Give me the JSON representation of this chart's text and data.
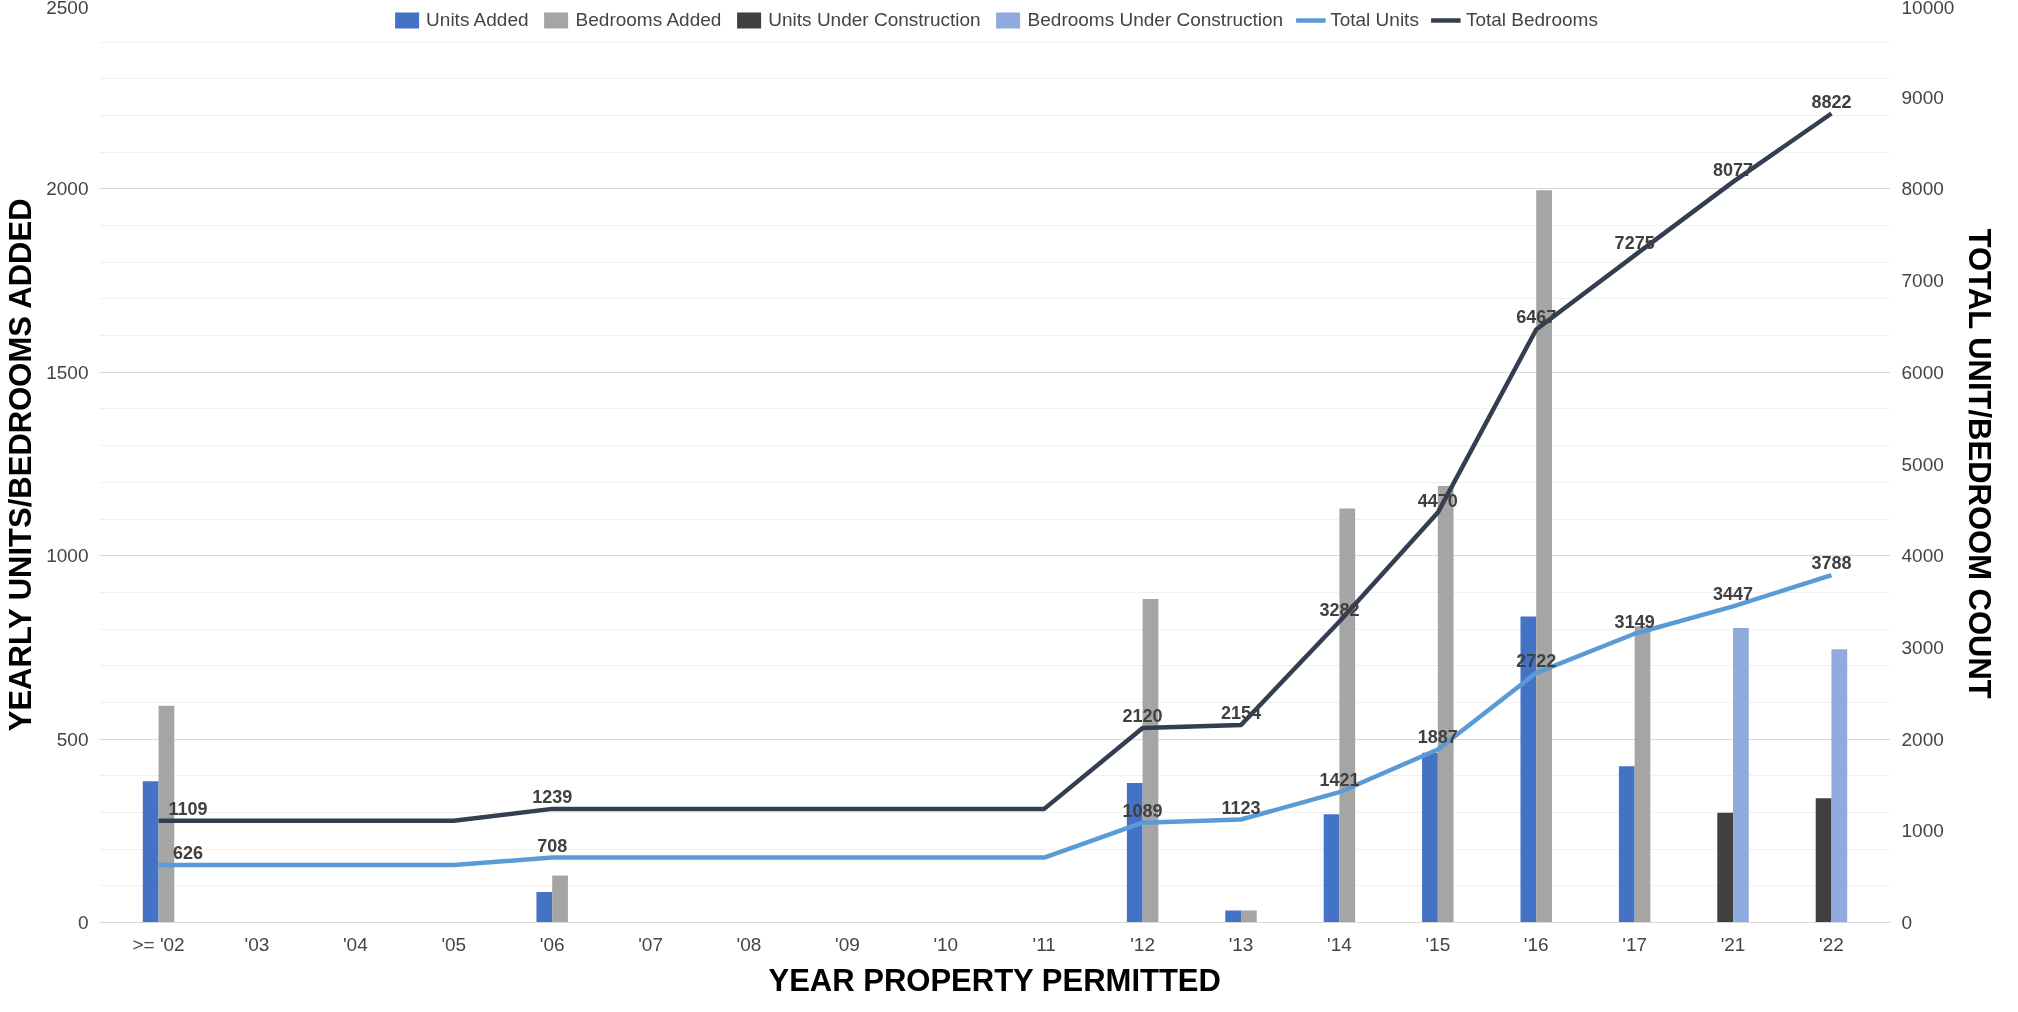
{
  "chart_data": {
    "type": "bar",
    "categories": [
      ">= '02",
      "'03",
      "'04",
      "'05",
      "'06",
      "'07",
      "'08",
      "'09",
      "'10",
      "'11",
      "'12",
      "'13",
      "'14",
      "'15",
      "'16",
      "'17",
      "'21",
      "'22"
    ],
    "series": [
      {
        "name": "Units Added",
        "color": "#4472c4",
        "values": [
          385,
          null,
          null,
          null,
          83,
          null,
          null,
          null,
          null,
          null,
          380,
          33,
          295,
          463,
          834,
          426,
          null,
          null
        ]
      },
      {
        "name": "Bedrooms Added",
        "color": "#a5a5a5",
        "values": [
          591,
          null,
          null,
          null,
          128,
          null,
          null,
          null,
          null,
          null,
          882,
          33,
          1129,
          1190,
          1996,
          808,
          null,
          null
        ]
      },
      {
        "name": "Units Under Construction",
        "color": "#404040",
        "values": [
          null,
          null,
          null,
          null,
          null,
          null,
          null,
          null,
          null,
          null,
          null,
          null,
          null,
          null,
          null,
          null,
          299,
          339
        ]
      },
      {
        "name": "Bedrooms Under Construction",
        "color": "#8faadc",
        "values": [
          null,
          null,
          null,
          null,
          null,
          null,
          null,
          null,
          null,
          null,
          null,
          null,
          null,
          null,
          null,
          null,
          803,
          745
        ]
      },
      {
        "name": "Total Units",
        "type": "line",
        "axis": "y2",
        "color": "#5b9bd5",
        "values": [
          626,
          626,
          626,
          626,
          708,
          708,
          708,
          708,
          708,
          708,
          1089,
          1123,
          1421,
          1887,
          2722,
          3149,
          3447,
          3788
        ],
        "value_labels": [
          "626",
          null,
          null,
          null,
          "708",
          null,
          null,
          null,
          null,
          null,
          "1089",
          "1123",
          "1421",
          "1887",
          "2722",
          "3149",
          "3447",
          "3788"
        ]
      },
      {
        "name": "Total Bedrooms",
        "type": "line",
        "axis": "y2",
        "color": "#333f50",
        "values": [
          1109,
          1109,
          1109,
          1109,
          1239,
          1239,
          1239,
          1239,
          1239,
          1239,
          2120,
          2154,
          3282,
          4470,
          6467,
          7275,
          8077,
          8822
        ],
        "value_labels": [
          "1109",
          null,
          null,
          null,
          "1239",
          null,
          null,
          null,
          null,
          null,
          "2120",
          "2154",
          "3282",
          "4470",
          "6467",
          "7275",
          "8077",
          "8822"
        ]
      }
    ],
    "xlabel": "YEAR PROPERTY PERMITTED",
    "ylabel": "YEARLY UNITS/BEDROOMS ADDED",
    "y2label": "TOTAL UNIT/BEDROOM COUNT",
    "ylim": [
      0,
      2500
    ],
    "yticks": [
      0,
      500,
      1000,
      1500,
      2000,
      2500
    ],
    "y2lim": [
      0,
      10000
    ],
    "y2ticks": [
      0,
      1000,
      2000,
      3000,
      4000,
      5000,
      6000,
      7000,
      8000,
      9000,
      10000
    ],
    "grid": "y",
    "legend": "top",
    "marker": "none",
    "line_style": "solid"
  }
}
